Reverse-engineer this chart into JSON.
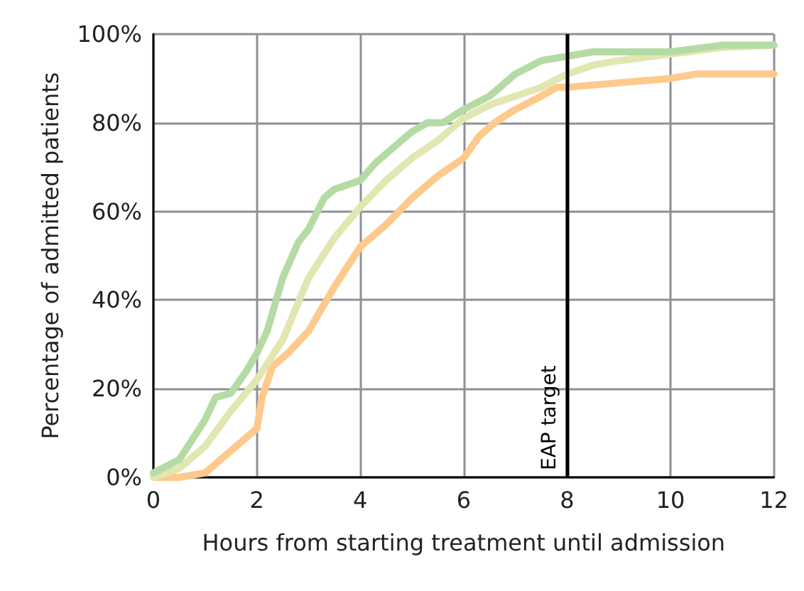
{
  "chart_data": {
    "type": "line",
    "xlabel": "Hours from starting treatment until admission",
    "ylabel": "Percentage of admitted patients",
    "xlim": [
      0,
      12
    ],
    "xticks": [
      0,
      2,
      4,
      6,
      8,
      10,
      12
    ],
    "ylim": [
      0,
      100
    ],
    "yticks": [
      {
        "value": 0,
        "label": "0%"
      },
      {
        "value": 20,
        "label": "20%"
      },
      {
        "value": 40,
        "label": "40%"
      },
      {
        "value": 60,
        "label": "60%"
      },
      {
        "value": 80,
        "label": "80%"
      },
      {
        "value": 100,
        "label": "100%"
      }
    ],
    "grid": true,
    "marker": "none",
    "line_style": "solid",
    "ref_lines": [
      {
        "axis": "x",
        "value": 8,
        "label": "EAP target",
        "color": "#000000"
      }
    ],
    "series": [
      {
        "color": "#fdc98c",
        "x": [
          0,
          0.5,
          1,
          1.3,
          1.6,
          2,
          2.1,
          2.3,
          2.6,
          3,
          3.5,
          4,
          4.5,
          5,
          5.5,
          6,
          6.3,
          6.6,
          7,
          7.5,
          7.8,
          8,
          9,
          10,
          10.5,
          12
        ],
        "values": [
          0,
          0,
          1,
          4,
          7,
          11,
          18,
          25,
          28,
          33,
          43,
          52,
          57,
          63,
          68,
          72,
          77,
          80,
          83,
          86,
          88,
          88,
          89,
          90,
          91,
          91
        ]
      },
      {
        "color": "#e2e6b0",
        "x": [
          0,
          0.5,
          1,
          1.5,
          2,
          2.5,
          3,
          3.5,
          4,
          4.5,
          5,
          5.5,
          6,
          6.5,
          7,
          7.5,
          8,
          8.5,
          9,
          10,
          11,
          12
        ],
        "values": [
          0,
          2,
          7,
          15,
          22,
          31,
          45,
          54,
          61,
          67,
          72,
          76,
          81,
          84,
          86,
          88,
          91,
          93,
          94,
          95.5,
          97,
          97.5
        ]
      },
      {
        "color": "#b5dba5",
        "x": [
          0,
          0.5,
          1,
          1.2,
          1.5,
          1.8,
          2,
          2.2,
          2.5,
          2.8,
          3,
          3.3,
          3.5,
          4,
          4.3,
          4.6,
          5,
          5.3,
          5.6,
          6,
          6.5,
          7,
          7.5,
          8,
          8.5,
          10,
          11,
          12
        ],
        "values": [
          1,
          4,
          13,
          18,
          19,
          24,
          28,
          33,
          45,
          53,
          56,
          63,
          65,
          67,
          71,
          74,
          78,
          80,
          80,
          83,
          86,
          91,
          94,
          95,
          96,
          96,
          97.5,
          97.5
        ]
      }
    ]
  }
}
